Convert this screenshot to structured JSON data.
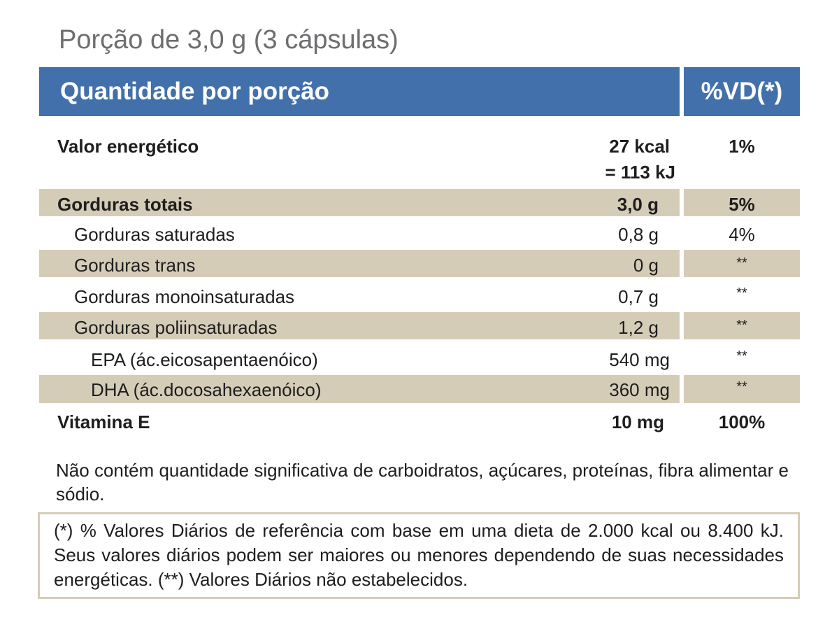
{
  "serving": "Porção de 3,0 g (3 cápsulas)",
  "header": {
    "quantity": "Quantidade por porção",
    "dv": "%VD(*)"
  },
  "rows": [
    {
      "label": "Valor energético",
      "amount": "27 kcal",
      "amount2": "= 113 kJ",
      "dv": "1%"
    },
    {
      "label": "Gorduras totais",
      "amount": "3,0 g",
      "dv": "5%"
    },
    {
      "label": "Gorduras saturadas",
      "amount": "0,8 g",
      "dv": "4%"
    },
    {
      "label": "Gorduras trans",
      "amount": "0 g",
      "dv": "**"
    },
    {
      "label": "Gorduras monoinsaturadas",
      "amount": "0,7 g",
      "dv": "**"
    },
    {
      "label": "Gorduras poliinsaturadas",
      "amount": "1,2 g",
      "dv": "**"
    },
    {
      "label": "EPA (ác.eicosapentaenóico)",
      "amount": "540 mg",
      "dv": "**"
    },
    {
      "label": "DHA (ác.docosahexaenóico)",
      "amount": "360 mg",
      "dv": "**"
    },
    {
      "label": "Vitamina E",
      "amount": "10 mg",
      "dv": "100%"
    }
  ],
  "note": "Não contém quantidade significativa de carboidratos, açúcares, proteínas, fibra alimentar e sódio.",
  "footnote": "(*) % Valores Diários de referência com base em uma dieta de 2.000 kcal ou 8.400 kJ. Seus valores diários podem ser maiores ou menores dependendo de suas necessidades energéticas. (**) Valores Diários não estabelecidos.",
  "colors": {
    "header": "#4270ab",
    "shade": "#d5ccb8"
  }
}
